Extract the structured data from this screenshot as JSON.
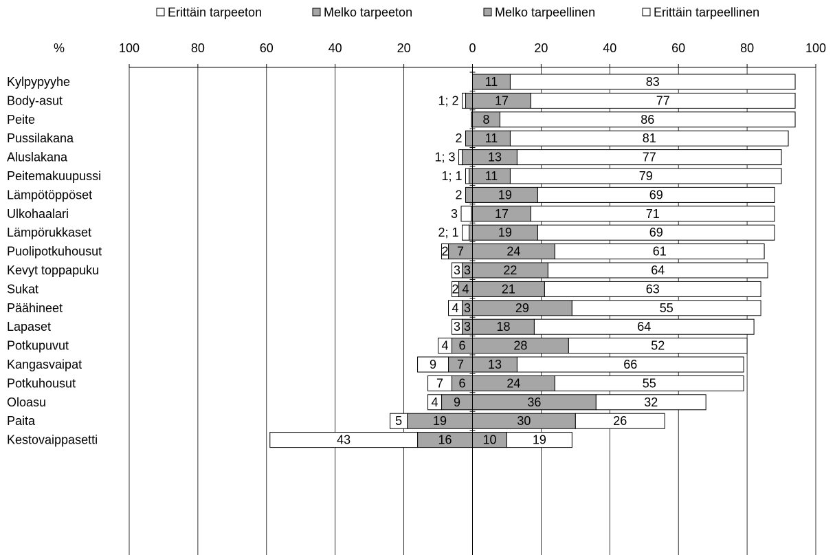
{
  "chart_data": {
    "type": "bar",
    "stacked": "diverging",
    "unit_label": "%",
    "xlim": [
      -100,
      100
    ],
    "x_ticks": [
      "100",
      "80",
      "60",
      "40",
      "20",
      "0",
      "20",
      "40",
      "60",
      "80",
      "100"
    ],
    "grid": true,
    "legend_position": "top",
    "legend": [
      {
        "name": "Erittäin tarpeeton",
        "color": "#ffffff"
      },
      {
        "name": "Melko tarpeeton",
        "color": "#a6a6a6"
      },
      {
        "name": "Melko tarpeellinen",
        "color": "#a6a6a6"
      },
      {
        "name": "Erittäin tarpeellinen",
        "color": "#ffffff"
      }
    ],
    "categories": [
      "Kylpypyyhe",
      "Body-asut",
      "Peite",
      "Pussilakana",
      "Aluslakana",
      "Peitemakuupussi",
      "Lämpötöppöset",
      "Ulkohaalari",
      "Lämpörukkaset",
      "Puolipotkuhousut",
      "Kevyt toppapuku",
      "Sukat",
      "Päähineet",
      "Lapaset",
      "Potkupuvut",
      "Kangasvaipat",
      "Potkuhousut",
      "Oloasu",
      "Paita",
      "Kestovaippasetti"
    ],
    "series": [
      {
        "name": "Erittäin tarpeeton",
        "values": [
          0,
          1,
          0,
          0,
          1,
          1,
          0,
          3,
          2,
          2,
          3,
          2,
          4,
          3,
          4,
          9,
          7,
          4,
          5,
          43
        ]
      },
      {
        "name": "Melko tarpeeton",
        "values": [
          0,
          2,
          0.3,
          2,
          3,
          1,
          2,
          0.3,
          1,
          7,
          3,
          4,
          3,
          3,
          6,
          7,
          6,
          9,
          19,
          16
        ]
      },
      {
        "name": "Melko tarpeellinen",
        "values": [
          11,
          17,
          8,
          11,
          13,
          11,
          19,
          17,
          19,
          24,
          22,
          21,
          29,
          18,
          28,
          13,
          24,
          36,
          30,
          10
        ]
      },
      {
        "name": "Erittäin tarpeellinen",
        "values": [
          83,
          77,
          86,
          81,
          77,
          79,
          69,
          71,
          69,
          61,
          64,
          63,
          55,
          64,
          52,
          66,
          55,
          32,
          26,
          19
        ]
      }
    ],
    "left_labels": [
      "",
      "1; 2",
      "",
      "2",
      "1; 3",
      "1; 1",
      "2",
      "3",
      "2; 1",
      "2",
      "3",
      "2",
      "4",
      "3",
      "4",
      "9",
      "7",
      "4",
      "5",
      "43"
    ],
    "left_inner_labels": [
      "",
      "",
      "",
      "",
      "",
      "",
      "",
      "",
      "",
      "7",
      "3",
      "4",
      "3",
      "3",
      "6",
      "7",
      "6",
      "9",
      "19",
      "16"
    ]
  }
}
